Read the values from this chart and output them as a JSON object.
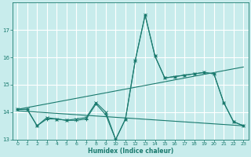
{
  "title": "",
  "xlabel": "Humidex (Indice chaleur)",
  "background_color": "#c8ecec",
  "line_color": "#1a7a6e",
  "grid_color": "#ffffff",
  "xlim": [
    -0.5,
    23.5
  ],
  "ylim": [
    13.0,
    18.0
  ],
  "yticks": [
    13,
    14,
    15,
    16,
    17
  ],
  "xticks": [
    0,
    1,
    2,
    3,
    4,
    5,
    6,
    7,
    8,
    9,
    10,
    11,
    12,
    13,
    14,
    15,
    16,
    17,
    18,
    19,
    20,
    21,
    22,
    23
  ],
  "series1_x": [
    0,
    1,
    2,
    3,
    4,
    5,
    6,
    7,
    8,
    9,
    10,
    11,
    12,
    13,
    14,
    15,
    16,
    17,
    18,
    19,
    20,
    21,
    22,
    23
  ],
  "series1_y": [
    14.1,
    14.1,
    13.5,
    13.8,
    13.75,
    13.7,
    13.75,
    13.8,
    14.35,
    14.0,
    13.0,
    13.75,
    15.9,
    17.55,
    16.05,
    15.25,
    15.3,
    15.35,
    15.4,
    15.45,
    15.4,
    14.35,
    13.65,
    13.5
  ],
  "series2_x": [
    0,
    1,
    2,
    3,
    4,
    5,
    6,
    7,
    8,
    9,
    10,
    11,
    12,
    13,
    14,
    15,
    16,
    17,
    18,
    19,
    20,
    21,
    22,
    23
  ],
  "series2_y": [
    14.1,
    14.1,
    13.5,
    13.75,
    13.75,
    13.7,
    13.7,
    13.75,
    14.3,
    13.9,
    13.0,
    13.75,
    15.9,
    17.55,
    16.05,
    15.25,
    15.3,
    15.35,
    15.4,
    15.45,
    15.4,
    14.35,
    13.65,
    13.5
  ],
  "series3_x": [
    0,
    23
  ],
  "series3_y": [
    14.05,
    13.5
  ],
  "series4_x": [
    0,
    23
  ],
  "series4_y": [
    14.1,
    15.65
  ]
}
